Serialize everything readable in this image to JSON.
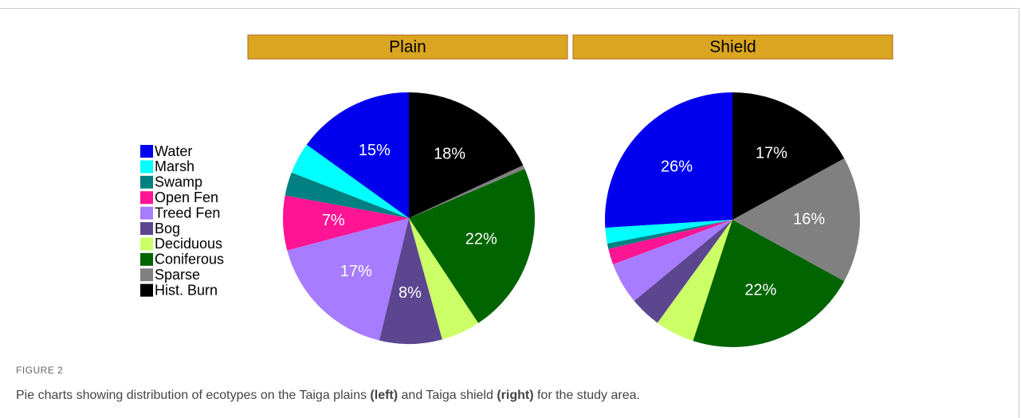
{
  "chart_data": [
    {
      "type": "pie",
      "title": "Plain",
      "categories": [
        "Water",
        "Marsh",
        "Swamp",
        "Open Fen",
        "Treed Fen",
        "Bog",
        "Deciduous",
        "Coniferous",
        "Sparse",
        "Hist. Burn"
      ],
      "values": [
        15,
        4,
        3,
        7,
        17,
        8,
        5,
        22,
        0.5,
        18
      ],
      "value_labels": [
        "15%",
        null,
        null,
        "7%",
        "17%",
        "8%",
        null,
        "22%",
        null,
        "18%"
      ],
      "colors": [
        "#0000ee",
        "#00ffff",
        "#008080",
        "#ff1493",
        "#a77cff",
        "#5c4690",
        "#ccff66",
        "#006400",
        "#808080",
        "#000000"
      ]
    },
    {
      "type": "pie",
      "title": "Shield",
      "categories": [
        "Water",
        "Marsh",
        "Swamp",
        "Open Fen",
        "Treed Fen",
        "Bog",
        "Deciduous",
        "Coniferous",
        "Sparse",
        "Hist. Burn"
      ],
      "values": [
        26,
        2,
        0.7,
        2,
        5.3,
        4,
        5,
        22,
        16,
        17
      ],
      "value_labels": [
        "26%",
        null,
        null,
        null,
        null,
        null,
        null,
        "22%",
        "16%",
        "17%"
      ],
      "colors": [
        "#0000ee",
        "#00ffff",
        "#008080",
        "#ff1493",
        "#a77cff",
        "#5c4690",
        "#ccff66",
        "#006400",
        "#808080",
        "#000000"
      ]
    }
  ],
  "caption": {
    "label": "FIGURE 2",
    "parts": [
      "Pie charts showing distribution of ecotypes on the Taiga plains ",
      "(left)",
      " and Taiga shield ",
      "(right)",
      " for the study area."
    ]
  }
}
